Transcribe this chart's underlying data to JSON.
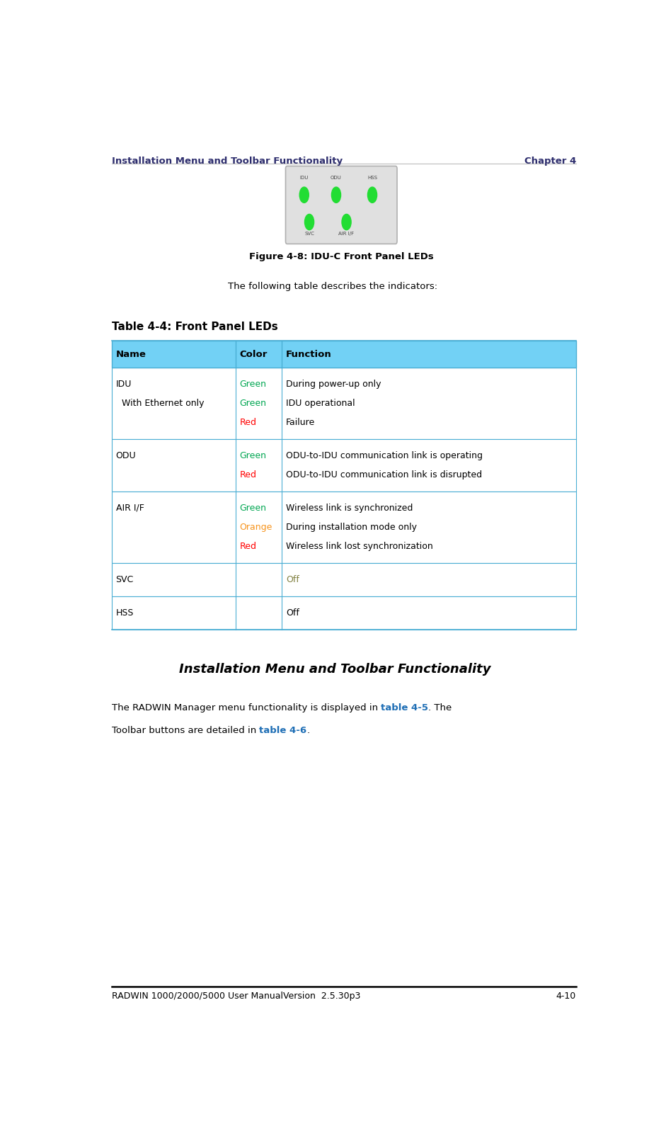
{
  "page_width": 9.41,
  "page_height": 16.04,
  "dpi": 100,
  "background_color": "#ffffff",
  "header_text_left": "Installation Menu and Toolbar Functionality",
  "header_text_right": "Chapter 4",
  "header_color": "#2e2e6e",
  "footer_text_left": "RADWIN 1000/2000/5000 User ManualVersion  2.5.30p3",
  "footer_text_right": "4-10",
  "footer_color": "#000000",
  "figure_caption": "Figure 4-8: IDU-C Front Panel LEDs",
  "intro_text": "The following table describes the indicators:",
  "table_title": "Table 4-4: Front Panel LEDs",
  "table_header_bg": "#72d1f5",
  "table_border_color": "#4aaed4",
  "table_header": [
    "Name",
    "Color",
    "Function"
  ],
  "green_color": "#00a651",
  "red_color": "#ff0000",
  "orange_color": "#f7941d",
  "svc_off_color": "#808040",
  "hss_off_color": "#000000",
  "table_rows": [
    {
      "name_lines": [
        "IDU",
        "  With Ethernet only",
        ""
      ],
      "color_lines": [
        "Green",
        "Green",
        "Red"
      ],
      "color_colors": [
        "#00a651",
        "#00a651",
        "#ff0000"
      ],
      "function_lines": [
        "During power-up only",
        "IDU operational",
        "Failure"
      ],
      "func_colors": [
        "#000000",
        "#000000",
        "#000000"
      ]
    },
    {
      "name_lines": [
        "ODU",
        ""
      ],
      "color_lines": [
        "Green",
        "Red"
      ],
      "color_colors": [
        "#00a651",
        "#ff0000"
      ],
      "function_lines": [
        "ODU-to-IDU communication link is operating",
        "ODU-to-IDU communication link is disrupted"
      ],
      "func_colors": [
        "#000000",
        "#000000"
      ]
    },
    {
      "name_lines": [
        "AIR I/F",
        "",
        ""
      ],
      "color_lines": [
        "Green",
        "Orange",
        "Red"
      ],
      "color_colors": [
        "#00a651",
        "#f7941d",
        "#ff0000"
      ],
      "function_lines": [
        "Wireless link is synchronized",
        "During installation mode only",
        "Wireless link lost synchronization"
      ],
      "func_colors": [
        "#000000",
        "#000000",
        "#000000"
      ]
    },
    {
      "name_lines": [
        "SVC"
      ],
      "color_lines": [
        ""
      ],
      "color_colors": [
        "#000000"
      ],
      "function_lines": [
        "Off"
      ],
      "func_colors": [
        "#808040"
      ]
    },
    {
      "name_lines": [
        "HSS"
      ],
      "color_lines": [
        ""
      ],
      "color_colors": [
        "#000000"
      ],
      "function_lines": [
        "Off"
      ],
      "func_colors": [
        "#000000"
      ]
    }
  ],
  "section_title": "Installation Menu and Toolbar Functionality",
  "section_link_color": "#1e6eb5",
  "col_bounds": [
    0.055,
    0.295,
    0.385,
    0.955
  ]
}
